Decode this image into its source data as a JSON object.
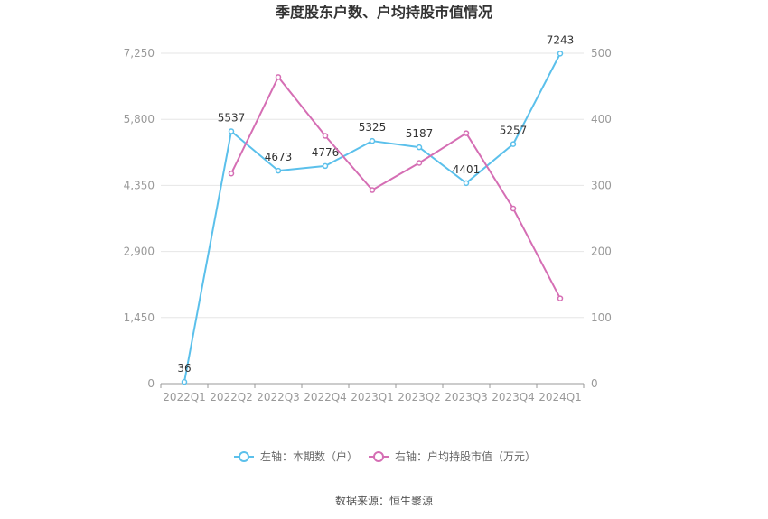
{
  "chart_data": {
    "type": "line",
    "title": "季度股东户数、户均持股市值情况",
    "categories": [
      "2022Q1",
      "2022Q2",
      "2022Q3",
      "2022Q4",
      "2023Q1",
      "2023Q2",
      "2023Q3",
      "2023Q4",
      "2024Q1"
    ],
    "y_left": {
      "ticks": [
        "0",
        "1,450",
        "2,900",
        "4,350",
        "5,800",
        "7,250"
      ],
      "ylim": [
        0,
        7250
      ]
    },
    "y_right": {
      "ticks": [
        "0",
        "100",
        "200",
        "300",
        "400",
        "500"
      ],
      "ylim": [
        0,
        500
      ]
    },
    "series": [
      {
        "name": "左轴：本期数（户）",
        "axis": "left",
        "color": "#5bc0eb",
        "values": [
          36,
          5537,
          4673,
          4776,
          5325,
          5187,
          4401,
          5257,
          7243
        ],
        "labels": [
          "36",
          "5537",
          "4673",
          "4776",
          "5325",
          "5187",
          "4401",
          "5257",
          "7243"
        ]
      },
      {
        "name": "右轴：户均持股市值（万元）",
        "axis": "right",
        "color": "#d56eb4",
        "values": [
          null,
          318,
          464,
          375,
          293,
          334,
          379,
          265,
          129
        ]
      }
    ],
    "grid": true,
    "legend": "bottom"
  },
  "source": "数据来源：恒生聚源"
}
